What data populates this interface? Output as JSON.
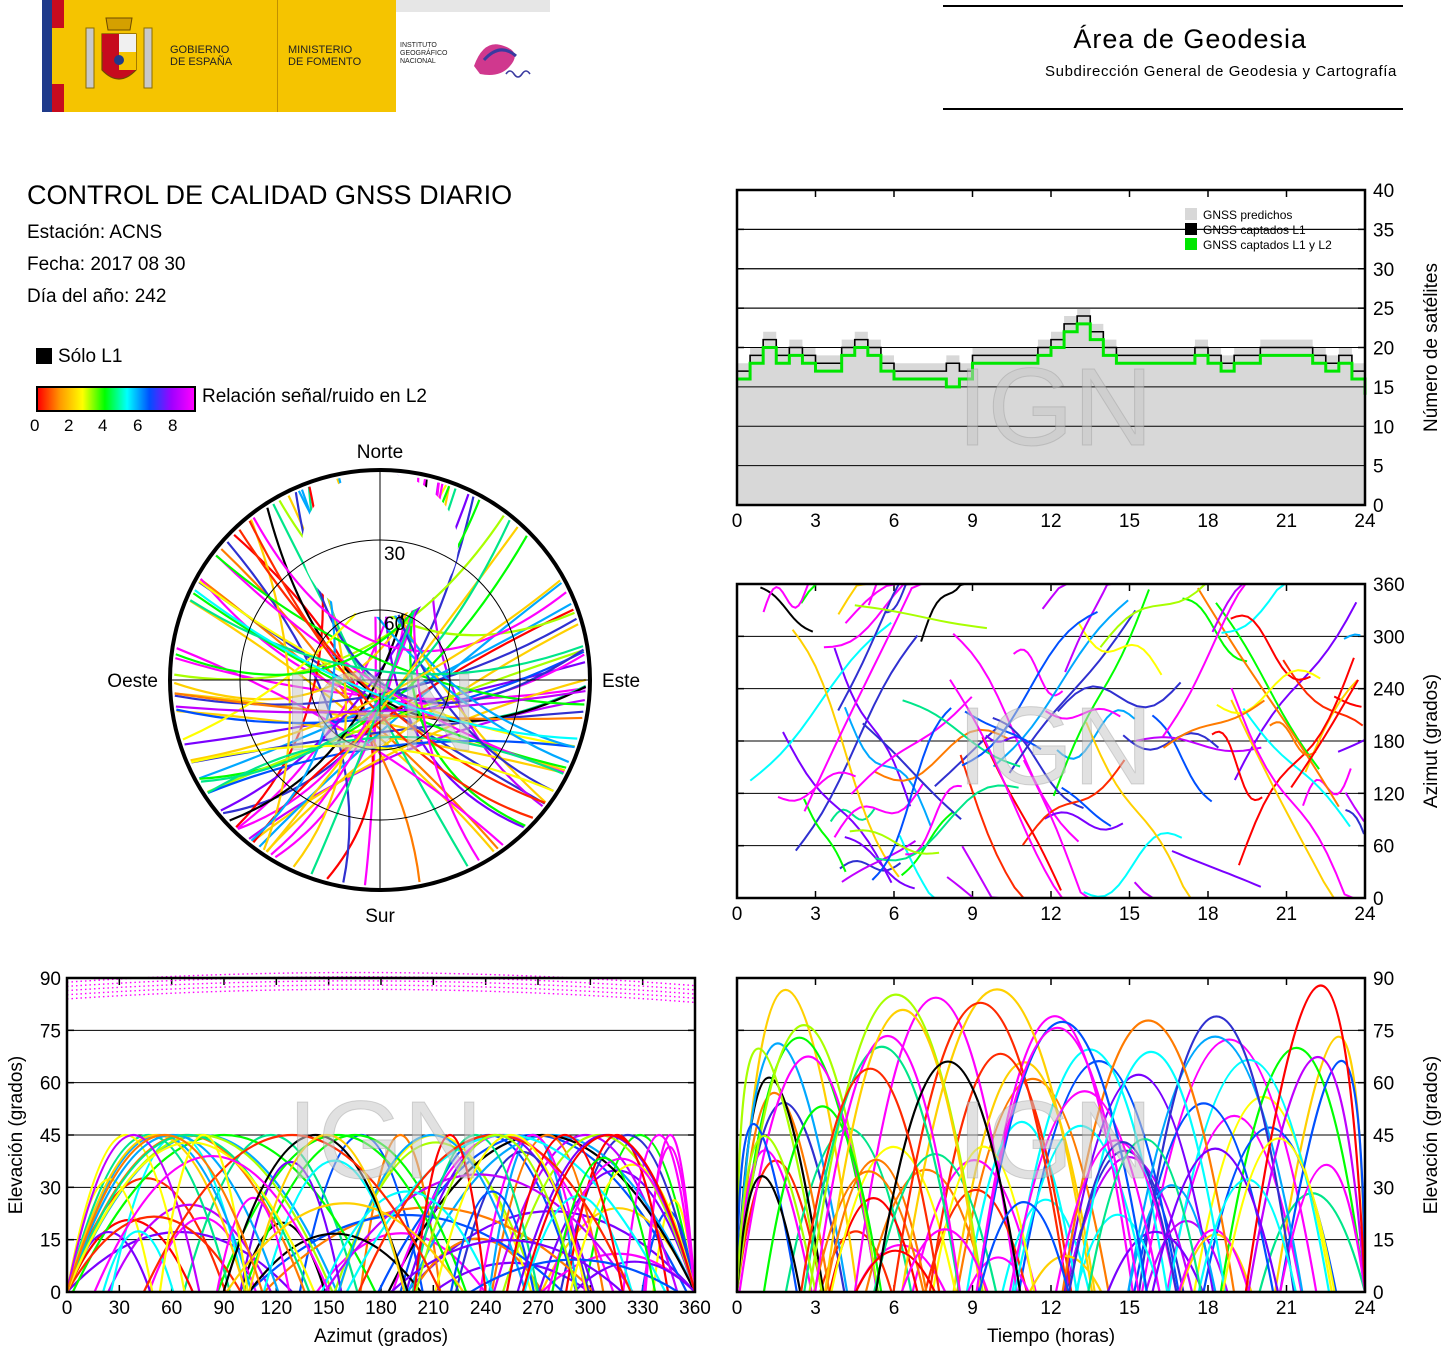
{
  "header": {
    "gov_line1": "GOBIERNO",
    "gov_line2": "DE ESPAÑA",
    "min_line1": "MINISTERIO",
    "min_line2": "DE FOMENTO",
    "ign_line1": "INSTITUTO",
    "ign_line2": "GEOGRÁFICO",
    "ign_line3": "NACIONAL",
    "area_title": "Área de Geodesia",
    "area_subtitle": "Subdirección General de Geodesia y Cartografía",
    "colors": {
      "yellow": "#f5c400",
      "red": "#c60b1e"
    }
  },
  "info": {
    "title": "CONTROL DE CALIDAD GNSS DIARIO",
    "station": "Estación: ACNS",
    "date": "Fecha: 2017 08 30",
    "doy": "Día del año: 242"
  },
  "legend": {
    "solo_l1": "Sólo L1",
    "snr_label": "Relación señal/ruido en L2",
    "ticks": [
      "0",
      "2",
      "4",
      "6",
      "8"
    ]
  },
  "watermark": "IGN",
  "chart_data": [
    {
      "id": "satellite-count",
      "type": "area",
      "ylabel": "Número de satélites",
      "xlim": [
        0,
        24
      ],
      "ylim": [
        0,
        40
      ],
      "xticks": [
        0,
        3,
        6,
        9,
        12,
        15,
        18,
        21,
        24
      ],
      "yticks": [
        0,
        5,
        10,
        15,
        20,
        25,
        30,
        35,
        40
      ],
      "grid": true,
      "legend_position": "top-right",
      "x": [
        0,
        0.5,
        1,
        1.5,
        2,
        2.5,
        3,
        3.5,
        4,
        4.5,
        5,
        5.5,
        6,
        6.5,
        7,
        7.5,
        8,
        8.5,
        9,
        9.5,
        10,
        10.5,
        11,
        11.5,
        12,
        12.5,
        13,
        13.5,
        14,
        14.5,
        15,
        15.5,
        16,
        16.5,
        17,
        17.5,
        18,
        18.5,
        19,
        19.5,
        20,
        20.5,
        21,
        21.5,
        22,
        22.5,
        23,
        23.5,
        24
      ],
      "series": [
        {
          "name": "GNSS predichos",
          "color": "#d8d8d8",
          "values": [
            18,
            20,
            22,
            20,
            21,
            20,
            19,
            19,
            21,
            22,
            21,
            19,
            18,
            18,
            18,
            18,
            19,
            18,
            20,
            20,
            20,
            20,
            20,
            21,
            22,
            24,
            25,
            23,
            21,
            20,
            20,
            20,
            20,
            20,
            20,
            21,
            20,
            19,
            20,
            20,
            21,
            21,
            21,
            21,
            20,
            19,
            20,
            18,
            16
          ]
        },
        {
          "name": "GNSS captados L1",
          "color": "#000000",
          "values": [
            17,
            19,
            21,
            19,
            20,
            19,
            18,
            18,
            20,
            21,
            20,
            18,
            17,
            17,
            17,
            17,
            18,
            17,
            19,
            19,
            19,
            19,
            19,
            20,
            21,
            23,
            24,
            22,
            20,
            19,
            19,
            19,
            19,
            19,
            19,
            20,
            19,
            18,
            19,
            19,
            20,
            20,
            20,
            20,
            19,
            18,
            19,
            17,
            15
          ]
        },
        {
          "name": "GNSS captados L1 y L2",
          "color": "#00e600",
          "values": [
            16,
            18,
            20,
            18,
            19,
            18,
            17,
            17,
            19,
            20,
            19,
            17,
            16,
            16,
            16,
            16,
            15,
            16,
            18,
            18,
            18,
            18,
            18,
            19,
            20,
            22,
            23,
            21,
            19,
            18,
            18,
            18,
            18,
            18,
            18,
            19,
            18,
            17,
            18,
            18,
            19,
            19,
            19,
            19,
            18,
            17,
            18,
            16,
            14
          ]
        }
      ]
    },
    {
      "id": "skyplot",
      "type": "scatter",
      "directions": {
        "north": "Norte",
        "south": "Sur",
        "west": "Oeste",
        "east": "Este"
      },
      "elevation_rings": [
        0,
        30,
        60
      ],
      "ring_labels": [
        "30",
        "60"
      ],
      "passes_count": 70
    },
    {
      "id": "azimuth-time",
      "type": "scatter",
      "ylabel": "Azimut (grados)",
      "xlim": [
        0,
        24
      ],
      "ylim": [
        0,
        360
      ],
      "xticks": [
        0,
        3,
        6,
        9,
        12,
        15,
        18,
        21,
        24
      ],
      "yticks": [
        0,
        60,
        120,
        180,
        240,
        300,
        360
      ],
      "grid": true
    },
    {
      "id": "elevation-azimuth",
      "type": "scatter",
      "xlabel": "Azimut (grados)",
      "ylabel": "Elevación (grados)",
      "xlim": [
        0,
        360
      ],
      "ylim": [
        0,
        90
      ],
      "xticks": [
        0,
        30,
        60,
        90,
        120,
        150,
        180,
        210,
        240,
        270,
        300,
        330,
        360
      ],
      "yticks": [
        0,
        15,
        30,
        45,
        60,
        75,
        90
      ],
      "grid": true
    },
    {
      "id": "elevation-time",
      "type": "line",
      "xlabel": "Tiempo (horas)",
      "ylabel": "Elevación (grados)",
      "xlim": [
        0,
        24
      ],
      "ylim": [
        0,
        90
      ],
      "xticks": [
        0,
        3,
        6,
        9,
        12,
        15,
        18,
        21,
        24
      ],
      "yticks": [
        0,
        15,
        30,
        45,
        60,
        75,
        90
      ],
      "grid": true
    }
  ]
}
